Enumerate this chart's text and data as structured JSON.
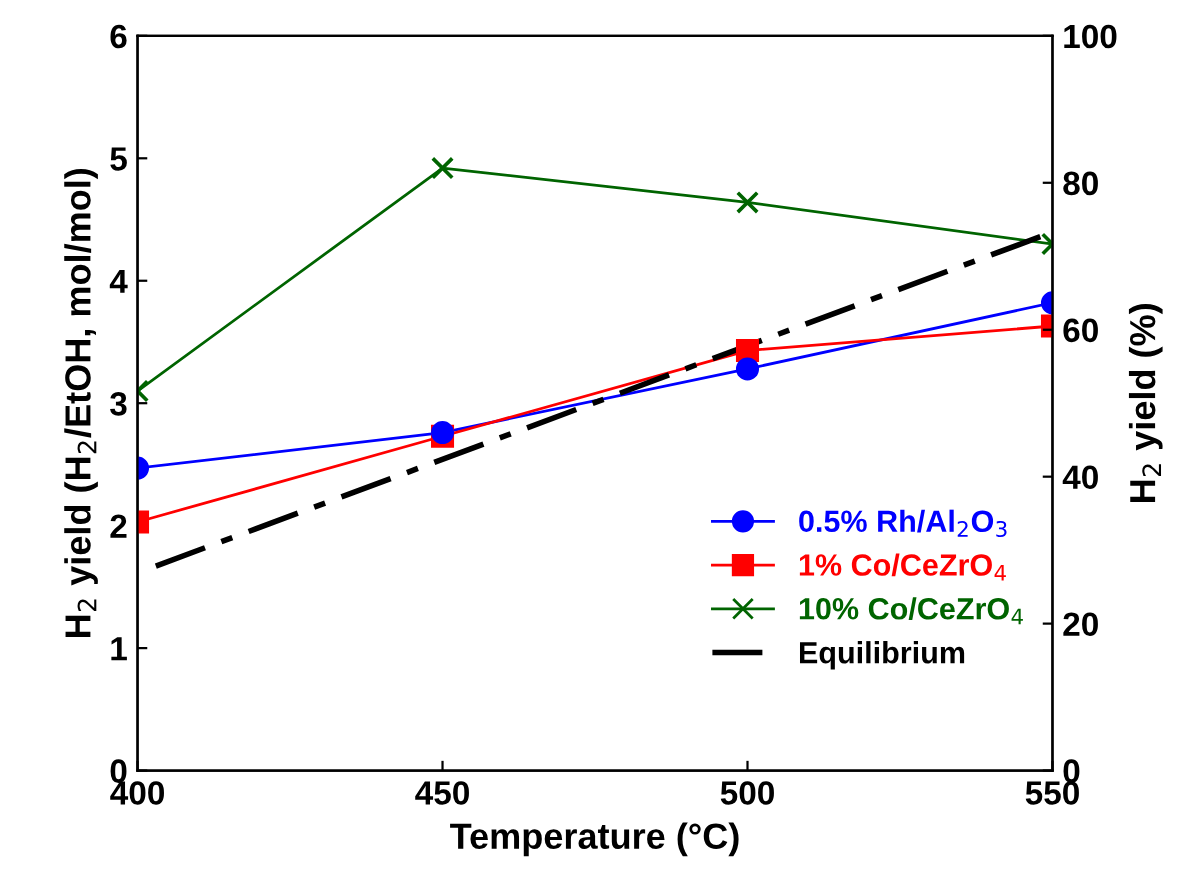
{
  "chart_data": {
    "type": "line",
    "xlabel": "Temperature (°C)",
    "ylabel": "H$_{2}$ yield (H$_{2}$/EtOH, mol/mol)",
    "y2label": "H$_{2}$ yield (%)",
    "xlim": [
      400,
      550
    ],
    "xticks": [
      400,
      450,
      500,
      550
    ],
    "ylim": [
      0,
      6
    ],
    "yticks": [
      0,
      1,
      2,
      3,
      4,
      5,
      6
    ],
    "y2lim": [
      0,
      100
    ],
    "y2ticks": [
      0,
      20,
      40,
      60,
      80,
      100
    ],
    "grid": false,
    "legend": "bottom right",
    "series": [
      {
        "name": "0.5% Rh/Al$_{2}$O$_{3}$",
        "color": "#0000ff",
        "marker": "circle",
        "line_style": "solid",
        "x": [
          400,
          450,
          500,
          550
        ],
        "values": [
          2.47,
          2.76,
          3.28,
          3.82
        ]
      },
      {
        "name": "1% Co/CeZrO$_{4}$",
        "color": "#ff0000",
        "marker": "square",
        "line_style": "solid",
        "x": [
          400,
          450,
          500,
          550
        ],
        "values": [
          2.03,
          2.73,
          3.43,
          3.63
        ]
      },
      {
        "name": "10% Co/CeZrO$_{4}$",
        "color": "#006400",
        "marker": "cross",
        "line_style": "solid",
        "x": [
          400,
          450,
          500,
          550
        ],
        "values": [
          3.1,
          4.92,
          4.64,
          4.3
        ]
      },
      {
        "name": "Equilibrium",
        "color": "#000000",
        "marker": "none",
        "line_style": "dashdot",
        "x": [
          403,
          548
        ],
        "values": [
          1.67,
          4.36
        ]
      }
    ]
  }
}
